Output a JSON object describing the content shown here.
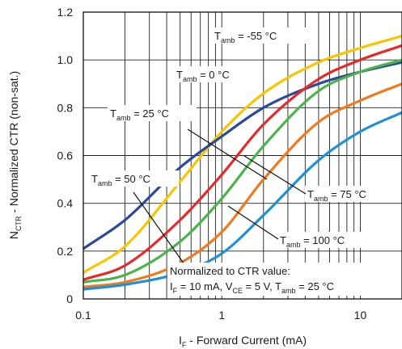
{
  "chart_data": {
    "type": "line",
    "xscale": "log",
    "xlim": [
      0.1,
      20
    ],
    "ylim": [
      0,
      1.2
    ],
    "grid": true,
    "x_ticks": [
      "0.1",
      "1",
      "10"
    ],
    "y_ticks": [
      "0",
      "0.2",
      "0.4",
      "0.6",
      "0.8",
      "1.0",
      "1.2"
    ],
    "xlabel": {
      "main": "I",
      "sub": "F",
      "rest": " - Forward Current (mA)"
    },
    "ylabel": {
      "main": "N",
      "sub": "CTR",
      "rest": " - Normalized CTR (non-sat.)"
    },
    "note": {
      "line1": "Normalized to CTR value:",
      "line2": [
        {
          "t": "I"
        },
        {
          "s": "F"
        },
        {
          "t": " = 10 mA, V"
        },
        {
          "s": "CE"
        },
        {
          "t": " = 5 V, T"
        },
        {
          "s": "amb"
        },
        {
          "t": " = 25 °C"
        }
      ]
    },
    "x": [
      0.1,
      0.2,
      0.5,
      1,
      2,
      5,
      10,
      20
    ],
    "series": [
      {
        "name": "T_amb = -55 °C",
        "color": "#f7c600",
        "values": [
          0.11,
          0.22,
          0.49,
          0.7,
          0.86,
          0.99,
          1.05,
          1.1
        ]
      },
      {
        "name": "T_amb = 0 °C",
        "color": "#2b4a9b",
        "values": [
          0.21,
          0.33,
          0.55,
          0.68,
          0.8,
          0.9,
          0.95,
          0.99
        ]
      },
      {
        "name": "T_amb = 25 °C",
        "color": "#e52a2a",
        "values": [
          0.08,
          0.14,
          0.33,
          0.52,
          0.73,
          0.92,
          1.0,
          1.06
        ]
      },
      {
        "name": "T_amb = 50 °C",
        "color": "#4bb54b",
        "values": [
          0.07,
          0.1,
          0.24,
          0.42,
          0.64,
          0.87,
          0.95,
          1.0
        ]
      },
      {
        "name": "T_amb = 75 °C",
        "color": "#f07a1e",
        "values": [
          0.05,
          0.07,
          0.15,
          0.28,
          0.5,
          0.74,
          0.83,
          0.9
        ]
      },
      {
        "name": "T_amb = 100 °C",
        "color": "#1f8fd6",
        "values": [
          0.04,
          0.06,
          0.11,
          0.19,
          0.35,
          0.58,
          0.7,
          0.78
        ]
      }
    ],
    "labels": [
      {
        "main": "T",
        "sub": "amb",
        "rest": " = -55 °C"
      },
      {
        "main": "T",
        "sub": "amb",
        "rest": " = 0 °C"
      },
      {
        "main": "T",
        "sub": "amb",
        "rest": " = 25 °C"
      },
      {
        "main": "T",
        "sub": "amb",
        "rest": " = 50 °C"
      },
      {
        "main": "T",
        "sub": "amb",
        "rest": " = 75 °C"
      },
      {
        "main": "T",
        "sub": "amb",
        "rest": " = 100 °C"
      }
    ]
  }
}
